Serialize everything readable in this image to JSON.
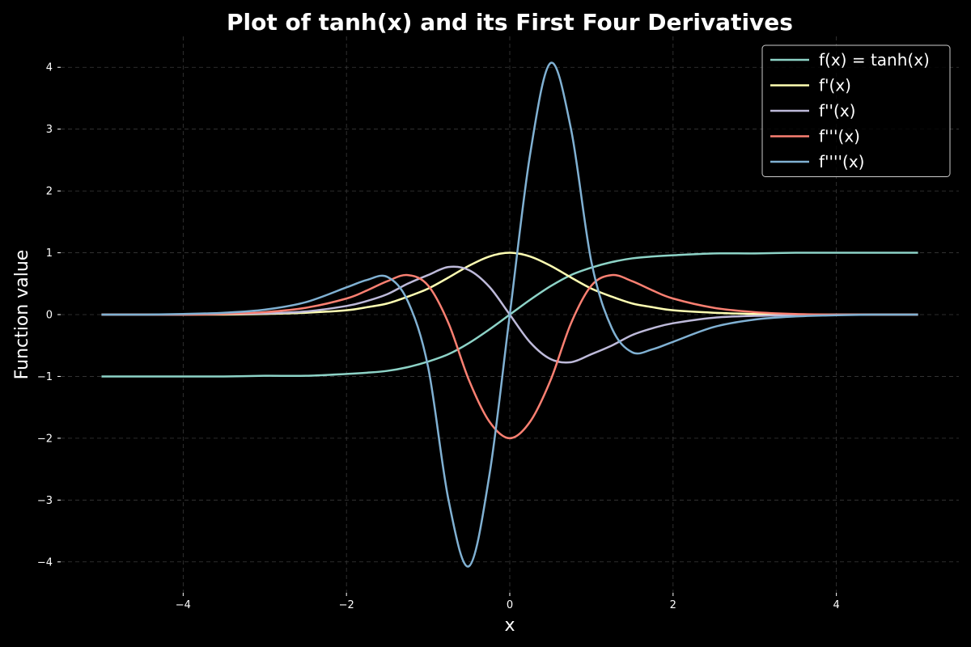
{
  "chart_data": {
    "type": "line",
    "title": "Plot of tanh(x) and its First Four Derivatives",
    "xlabel": "x",
    "ylabel": "Function value",
    "xlim": [
      -5.5,
      5.5
    ],
    "ylim": [
      -4.5,
      4.5
    ],
    "grid": true,
    "legend_position": "top-right",
    "x_ticks": [
      -4,
      -2,
      0,
      2,
      4
    ],
    "x_tick_labels": [
      "−4",
      "−2",
      "0",
      "2",
      "4"
    ],
    "y_ticks": [
      -4,
      -3,
      -2,
      -1,
      0,
      1,
      2,
      3,
      4
    ],
    "y_tick_labels": [
      "−4",
      "−3",
      "−2",
      "−1",
      "0",
      "1",
      "2",
      "3",
      "4"
    ],
    "x": [
      -5,
      -4.5,
      -4,
      -3.5,
      -3,
      -2.5,
      -2,
      -1.75,
      -1.5,
      -1.25,
      -1,
      -0.75,
      -0.5,
      -0.25,
      0,
      0.25,
      0.5,
      0.75,
      1,
      1.25,
      1.5,
      1.75,
      2,
      2.5,
      3,
      3.5,
      4,
      4.5,
      5
    ],
    "series": [
      {
        "name": "f(x) = tanh(x)",
        "color": "#8dd3c7",
        "values": [
          -1.0,
          -1.0,
          -1.0,
          -1.0,
          -0.99,
          -0.99,
          -0.96,
          -0.94,
          -0.91,
          -0.85,
          -0.76,
          -0.64,
          -0.46,
          -0.24,
          0.0,
          0.24,
          0.46,
          0.64,
          0.76,
          0.85,
          0.91,
          0.94,
          0.96,
          0.99,
          0.99,
          1.0,
          1.0,
          1.0,
          1.0
        ]
      },
      {
        "name": "f'(x)",
        "color": "#ffffb3",
        "values": [
          0.0,
          0.0,
          0.0,
          0.0,
          0.01,
          0.03,
          0.07,
          0.12,
          0.18,
          0.29,
          0.42,
          0.6,
          0.79,
          0.94,
          1.0,
          0.94,
          0.79,
          0.6,
          0.42,
          0.29,
          0.18,
          0.12,
          0.07,
          0.03,
          0.01,
          0.0,
          0.0,
          0.0,
          0.0
        ]
      },
      {
        "name": "f''(x)",
        "color": "#bebada",
        "values": [
          0.0,
          0.0,
          0.0,
          0.01,
          0.02,
          0.05,
          0.14,
          0.22,
          0.33,
          0.5,
          0.64,
          0.77,
          0.72,
          0.45,
          0.0,
          -0.45,
          -0.72,
          -0.77,
          -0.64,
          -0.5,
          -0.33,
          -0.22,
          -0.14,
          -0.05,
          -0.02,
          -0.01,
          0.0,
          0.0,
          0.0
        ]
      },
      {
        "name": "f'''(x)",
        "color": "#fb8072",
        "values": [
          0.0,
          0.0,
          0.0,
          0.01,
          0.04,
          0.11,
          0.26,
          0.39,
          0.54,
          0.64,
          0.47,
          -0.14,
          -1.06,
          -1.73,
          -2.0,
          -1.73,
          -1.06,
          -0.14,
          0.47,
          0.64,
          0.54,
          0.39,
          0.26,
          0.11,
          0.04,
          0.01,
          0.0,
          0.0,
          0.0
        ]
      },
      {
        "name": "f''''(x)",
        "color": "#80b1d3",
        "values": [
          0.0,
          0.0,
          0.01,
          0.03,
          0.08,
          0.2,
          0.44,
          0.56,
          0.61,
          0.22,
          -0.85,
          -3.0,
          -4.07,
          -2.6,
          0.0,
          2.6,
          4.07,
          3.0,
          0.85,
          -0.22,
          -0.61,
          -0.56,
          -0.44,
          -0.2,
          -0.08,
          -0.03,
          -0.01,
          0.0,
          0.0
        ]
      }
    ]
  }
}
